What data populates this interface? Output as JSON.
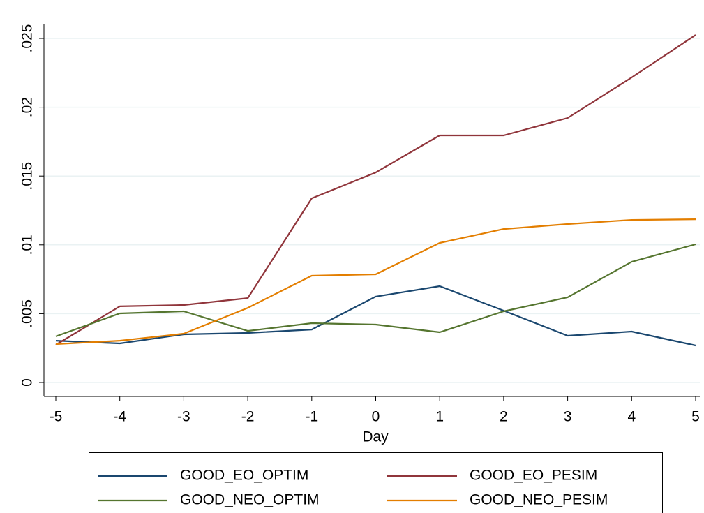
{
  "chart_data": {
    "type": "line",
    "x": [
      -5,
      -4,
      -3,
      -2,
      -1,
      0,
      1,
      2,
      3,
      4,
      5
    ],
    "xlim": [
      -5,
      5
    ],
    "xticks": [
      -5,
      -4,
      -3,
      -2,
      -1,
      0,
      1,
      2,
      3,
      4,
      5
    ],
    "xlabel": "Day",
    "ylim": [
      0,
      0.025
    ],
    "yticks": [
      0,
      {
        "value": 0.005,
        "label": ".005"
      },
      {
        "value": 0.01,
        "label": ".01"
      },
      {
        "value": 0.015,
        "label": ".015"
      },
      {
        "value": 0.02,
        "label": ".02"
      },
      {
        "value": 0.025,
        "label": ".025"
      }
    ],
    "grid": true,
    "legend": "bottom",
    "series": [
      {
        "name": "GOOD_EO_OPTIM",
        "color": "#1a476f",
        "values": [
          0.00304,
          0.00284,
          0.0035,
          0.0036,
          0.00385,
          0.00624,
          0.007,
          0.00522,
          0.0034,
          0.0037,
          0.00269
        ]
      },
      {
        "name": "GOOD_EO_PESIM",
        "color": "#90353b",
        "values": [
          0.00274,
          0.00553,
          0.00563,
          0.00613,
          0.01338,
          0.01526,
          0.01795,
          0.01795,
          0.01922,
          0.02216,
          0.02525
        ]
      },
      {
        "name": "GOOD_NEO_OPTIM",
        "color": "#55752f",
        "values": [
          0.00335,
          0.00502,
          0.00517,
          0.00375,
          0.00431,
          0.00421,
          0.00365,
          0.00517,
          0.00619,
          0.00877,
          0.01004
        ]
      },
      {
        "name": "GOOD_NEO_PESIM",
        "color": "#e37e00",
        "values": [
          0.00279,
          0.00304,
          0.00355,
          0.00542,
          0.00776,
          0.00786,
          0.01014,
          0.01115,
          0.01151,
          0.01181,
          0.01186
        ]
      }
    ]
  }
}
